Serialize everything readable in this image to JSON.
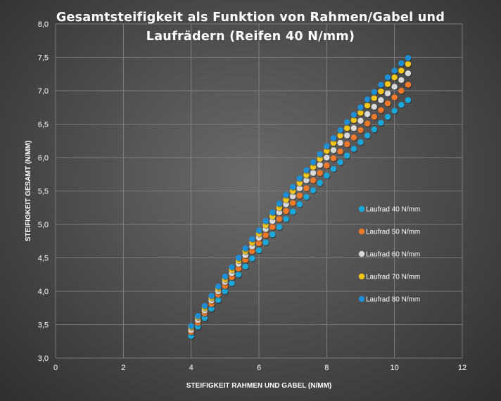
{
  "chart_data": {
    "type": "scatter",
    "title_line1": "Gesamtsteifigkeit als Funktion von Rahmen/Gabel und",
    "title_line2": "Laufrädern (Reifen 40 N/mm)",
    "xlabel": "STEIFIGKEIT RAHMEN UND GABEL (N/MM)",
    "ylabel": "STEIFIGKEIT GESAMT (N/MM)",
    "xlim": [
      0,
      12
    ],
    "ylim": [
      3.0,
      8.0
    ],
    "x_ticks": [
      "0",
      "2",
      "4",
      "6",
      "8",
      "10",
      "12"
    ],
    "y_ticks": [
      "3,0",
      "3,5",
      "4,0",
      "4,5",
      "5,0",
      "5,5",
      "6,0",
      "6,5",
      "7,0",
      "7,5",
      "8,0"
    ],
    "grid": true,
    "legend_position": "right",
    "x": [
      4.0,
      4.2,
      4.4,
      4.6,
      4.8,
      5.0,
      5.2,
      5.4,
      5.6,
      5.8,
      6.0,
      6.2,
      6.4,
      6.6,
      6.8,
      7.0,
      7.2,
      7.4,
      7.6,
      7.8,
      8.0,
      8.2,
      8.4,
      8.6,
      8.8,
      9.0,
      9.2,
      9.4,
      9.6,
      9.8,
      10.0,
      10.2,
      10.4
    ],
    "series": [
      {
        "name": "Laufrad 40 N/mm",
        "color": "#1aa7d9",
        "values": [
          3.33,
          3.47,
          3.6,
          3.74,
          3.87,
          4.0,
          4.12,
          4.25,
          4.37,
          4.49,
          4.61,
          4.73,
          4.85,
          4.96,
          5.08,
          5.19,
          5.3,
          5.41,
          5.51,
          5.62,
          5.73,
          5.83,
          5.93,
          6.03,
          6.13,
          6.23,
          6.33,
          6.42,
          6.52,
          6.61,
          6.7,
          6.79,
          6.86
        ]
      },
      {
        "name": "Laufrad 50 N/mm",
        "color": "#f07a2a",
        "values": [
          3.39,
          3.53,
          3.67,
          3.81,
          3.95,
          4.08,
          4.21,
          4.34,
          4.47,
          4.6,
          4.72,
          4.84,
          4.96,
          5.08,
          5.2,
          5.32,
          5.43,
          5.54,
          5.66,
          5.77,
          5.88,
          5.99,
          6.09,
          6.2,
          6.3,
          6.41,
          6.51,
          6.61,
          6.71,
          6.81,
          6.9,
          7.0,
          7.09
        ]
      },
      {
        "name": "Laufrad 60 N/mm",
        "color": "#d9d9d9",
        "values": [
          3.42,
          3.57,
          3.71,
          3.86,
          4.0,
          4.14,
          4.27,
          4.41,
          4.54,
          4.67,
          4.8,
          4.93,
          5.05,
          5.18,
          5.3,
          5.42,
          5.54,
          5.66,
          5.77,
          5.89,
          6.0,
          6.11,
          6.22,
          6.33,
          6.44,
          6.55,
          6.65,
          6.76,
          6.86,
          6.96,
          7.06,
          7.16,
          7.26
        ]
      },
      {
        "name": "Laufrad 70 N/mm",
        "color": "#f5c518",
        "values": [
          3.46,
          3.61,
          3.75,
          3.9,
          4.04,
          4.18,
          4.32,
          4.46,
          4.6,
          4.73,
          4.86,
          4.99,
          5.12,
          5.25,
          5.37,
          5.5,
          5.62,
          5.74,
          5.86,
          5.98,
          6.1,
          6.22,
          6.33,
          6.44,
          6.56,
          6.67,
          6.78,
          6.89,
          6.99,
          7.1,
          7.2,
          7.3,
          7.4
        ]
      },
      {
        "name": "Laufrad 80 N/mm",
        "color": "#1e8fd6",
        "values": [
          3.48,
          3.63,
          3.78,
          3.93,
          4.07,
          4.22,
          4.36,
          4.5,
          4.64,
          4.78,
          4.91,
          5.05,
          5.18,
          5.31,
          5.44,
          5.56,
          5.69,
          5.81,
          5.93,
          6.05,
          6.17,
          6.29,
          6.41,
          6.53,
          6.64,
          6.75,
          6.87,
          6.98,
          7.09,
          7.2,
          7.3,
          7.41,
          7.49
        ]
      }
    ]
  }
}
